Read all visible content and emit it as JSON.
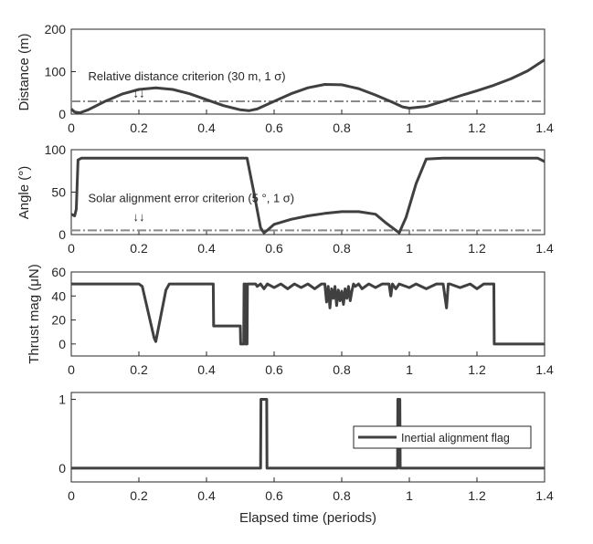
{
  "chart_data": [
    {
      "type": "line",
      "ylabel": "Distance (m)",
      "xlim": [
        0,
        1.4
      ],
      "ylim": [
        0,
        200
      ],
      "xticks": [
        "0",
        "0.2",
        "0.4",
        "0.6",
        "0.8",
        "1",
        "1.2",
        "1.4"
      ],
      "yticks": [
        "0",
        "100",
        "200"
      ],
      "grid": false,
      "series": [
        {
          "color": "#404040",
          "x": [
            0,
            0.01,
            0.025,
            0.05,
            0.1,
            0.15,
            0.2,
            0.25,
            0.3,
            0.35,
            0.4,
            0.45,
            0.5,
            0.525,
            0.55,
            0.6,
            0.65,
            0.7,
            0.75,
            0.8,
            0.85,
            0.9,
            0.95,
            0.98,
            1.0,
            1.05,
            1.1,
            1.15,
            1.2,
            1.25,
            1.3,
            1.35,
            1.4
          ],
          "values": [
            12,
            5,
            3,
            10,
            30,
            47,
            58,
            62,
            58,
            48,
            34,
            20,
            10,
            8,
            12,
            30,
            48,
            62,
            70,
            69,
            60,
            45,
            28,
            17,
            14,
            18,
            30,
            43,
            55,
            68,
            83,
            102,
            128
          ]
        }
      ],
      "reference_lines": [
        {
          "y": 30,
          "style": "dash-dot",
          "color": "#8a8a8a"
        }
      ],
      "annotations": [
        {
          "text": "Relative distance criterion (30 m, 1 σ)",
          "x": 0.05,
          "y": 80
        },
        {
          "text": "↓↓",
          "x": 0.2,
          "y": 40
        }
      ]
    },
    {
      "type": "line",
      "ylabel": "Angle (°)",
      "xlim": [
        0,
        1.4
      ],
      "ylim": [
        0,
        100
      ],
      "xticks": [
        "0",
        "0.2",
        "0.4",
        "0.6",
        "0.8",
        "1",
        "1.2",
        "1.4"
      ],
      "yticks": [
        "0",
        "50",
        "100"
      ],
      "grid": false,
      "series": [
        {
          "color": "#404040",
          "x": [
            0,
            0.01,
            0.015,
            0.02,
            0.03,
            0.1,
            0.2,
            0.3,
            0.4,
            0.5,
            0.52,
            0.54,
            0.56,
            0.57,
            0.58,
            0.6,
            0.65,
            0.7,
            0.75,
            0.8,
            0.85,
            0.9,
            0.93,
            0.96,
            0.97,
            0.99,
            1.02,
            1.05,
            1.1,
            1.2,
            1.3,
            1.38,
            1.4
          ],
          "values": [
            24,
            22,
            30,
            88,
            90,
            90,
            90,
            90,
            90,
            90,
            90,
            50,
            8,
            2,
            5,
            12,
            18,
            22,
            25,
            27,
            27,
            24,
            14,
            5,
            2,
            20,
            60,
            89,
            90,
            90,
            90,
            90,
            86
          ]
        }
      ],
      "reference_lines": [
        {
          "y": 5,
          "style": "dash-dot",
          "color": "#8a8a8a"
        }
      ],
      "annotations": [
        {
          "text": "Solar alignment error criterion (5 °, 1 σ)",
          "x": 0.05,
          "y": 38
        },
        {
          "text": "↓↓",
          "x": 0.2,
          "y": 16
        }
      ]
    },
    {
      "type": "line",
      "ylabel": "Thrust mag (μN)",
      "xlim": [
        0,
        1.4
      ],
      "ylim": [
        -10,
        60
      ],
      "xticks": [
        "0",
        "0.2",
        "0.4",
        "0.6",
        "0.8",
        "1",
        "1.2",
        "1.4"
      ],
      "yticks": [
        "0",
        "20",
        "40",
        "60"
      ],
      "grid": false,
      "series": [
        {
          "color": "#404040",
          "x": [
            0,
            0.2,
            0.21,
            0.245,
            0.25,
            0.28,
            0.29,
            0.42,
            0.421,
            0.5,
            0.501,
            0.51,
            0.511,
            0.515,
            0.516,
            0.52,
            0.521,
            0.53,
            0.545,
            0.55,
            0.56,
            0.57,
            0.58,
            0.6,
            0.62,
            0.64,
            0.66,
            0.68,
            0.7,
            0.72,
            0.74,
            0.75,
            0.755,
            0.76,
            0.765,
            0.77,
            0.775,
            0.78,
            0.785,
            0.79,
            0.795,
            0.8,
            0.805,
            0.81,
            0.815,
            0.82,
            0.825,
            0.83,
            0.835,
            0.84,
            0.85,
            0.86,
            0.88,
            0.9,
            0.92,
            0.94,
            0.945,
            0.95,
            0.96,
            0.97,
            1.0,
            1.02,
            1.05,
            1.08,
            1.1,
            1.11,
            1.115,
            1.12,
            1.15,
            1.18,
            1.2,
            1.22,
            1.24,
            1.25,
            1.251,
            1.4
          ],
          "values": [
            50,
            50,
            48,
            5,
            2,
            45,
            50,
            50,
            15,
            15,
            0,
            0,
            50,
            50,
            0,
            0,
            50,
            50,
            50,
            48,
            50,
            46,
            50,
            47,
            50,
            46,
            50,
            47,
            50,
            46,
            50,
            50,
            35,
            48,
            30,
            46,
            38,
            48,
            32,
            45,
            36,
            44,
            33,
            46,
            38,
            48,
            36,
            44,
            50,
            48,
            50,
            46,
            50,
            47,
            50,
            50,
            40,
            50,
            46,
            50,
            47,
            50,
            46,
            50,
            50,
            30,
            50,
            50,
            47,
            50,
            46,
            50,
            50,
            50,
            0,
            0
          ]
        }
      ]
    },
    {
      "type": "line",
      "xlabel": "Elapsed time (periods)",
      "xlim": [
        0,
        1.4
      ],
      "ylim": [
        -0.2,
        1.1
      ],
      "xticks": [
        "0",
        "0.2",
        "0.4",
        "0.6",
        "0.8",
        "1",
        "1.2",
        "1.4"
      ],
      "yticks": [
        "0",
        "1"
      ],
      "grid": false,
      "legend_position": "right",
      "series": [
        {
          "name": "Inertial alignment flag",
          "color": "#404040",
          "x": [
            0,
            0.56,
            0.561,
            0.578,
            0.579,
            0.965,
            0.966,
            0.972,
            0.973,
            1.4
          ],
          "values": [
            0,
            0,
            1,
            1,
            0,
            0,
            1,
            1,
            0,
            0
          ]
        }
      ]
    }
  ]
}
